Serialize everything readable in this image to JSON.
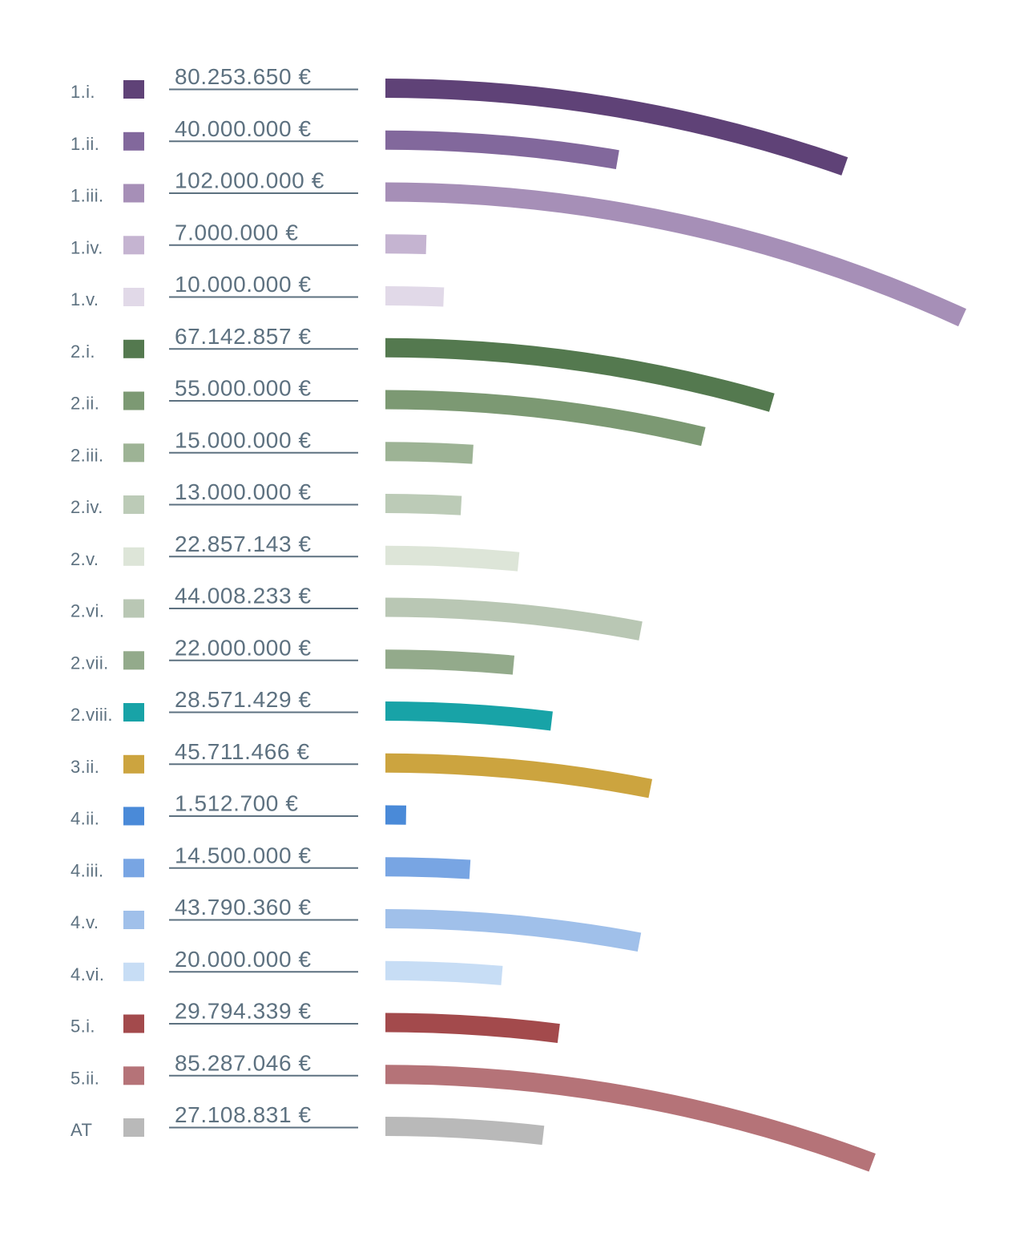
{
  "chart_data": {
    "type": "bar",
    "variant": "curved-arc-horizontal-bars",
    "title": "",
    "xlabel": "",
    "ylabel": "",
    "unit": "€",
    "grid": false,
    "legend_position": "left-of-bars",
    "value_format": "dot-thousands-euro",
    "rows": [
      {
        "category": "1.i.",
        "value": 80253650,
        "label": "80.253.650 €",
        "color": "#5f4277"
      },
      {
        "category": "1.ii.",
        "value": 40000000,
        "label": "40.000.000 €",
        "color": "#82689c"
      },
      {
        "category": "1.iii.",
        "value": 102000000,
        "label": "102.000.000 €",
        "color": "#a68fb7"
      },
      {
        "category": "1.iv.",
        "value": 7000000,
        "label": "7.000.000 €",
        "color": "#c5b4d1"
      },
      {
        "category": "1.v.",
        "value": 10000000,
        "label": "10.000.000 €",
        "color": "#e1d9e8"
      },
      {
        "category": "2.i.",
        "value": 67142857,
        "label": "67.142.857 €",
        "color": "#54794f"
      },
      {
        "category": "2.ii.",
        "value": 55000000,
        "label": "55.000.000 €",
        "color": "#7c9973"
      },
      {
        "category": "2.iii.",
        "value": 15000000,
        "label": "15.000.000 €",
        "color": "#9db395"
      },
      {
        "category": "2.iv.",
        "value": 13000000,
        "label": "13.000.000 €",
        "color": "#bccbb7"
      },
      {
        "category": "2.v.",
        "value": 22857143,
        "label": "22.857.143 €",
        "color": "#dde5d8"
      },
      {
        "category": "2.vi.",
        "value": 44008233,
        "label": "44.008.233 €",
        "color": "#b9c7b4"
      },
      {
        "category": "2.vii.",
        "value": 22000000,
        "label": "22.000.000 €",
        "color": "#93aa8b"
      },
      {
        "category": "2.viii.",
        "value": 28571429,
        "label": "28.571.429 €",
        "color": "#18a3a7"
      },
      {
        "category": "3.ii.",
        "value": 45711466,
        "label": "45.711.466 €",
        "color": "#cca43f"
      },
      {
        "category": "4.ii.",
        "value": 1512700,
        "label": "1.512.700 €",
        "color": "#4a8ad8"
      },
      {
        "category": "4.iii.",
        "value": 14500000,
        "label": "14.500.000 €",
        "color": "#78a5e3"
      },
      {
        "category": "4.v.",
        "value": 43790360,
        "label": "43.790.360 €",
        "color": "#a0c0ea"
      },
      {
        "category": "4.vi.",
        "value": 20000000,
        "label": "20.000.000 €",
        "color": "#c7ddf5"
      },
      {
        "category": "5.i.",
        "value": 29794339,
        "label": "29.794.339 €",
        "color": "#a34a4c"
      },
      {
        "category": "5.ii.",
        "value": 85287046,
        "label": "85.287.046 €",
        "color": "#b57378"
      },
      {
        "category": "AT",
        "value": 27108831,
        "label": "27.108.831 €",
        "color": "#b9b9b9"
      }
    ]
  },
  "styles": {
    "background": "#ffffff",
    "text_color": "#5d7180",
    "underline_color": "#5d7180"
  }
}
